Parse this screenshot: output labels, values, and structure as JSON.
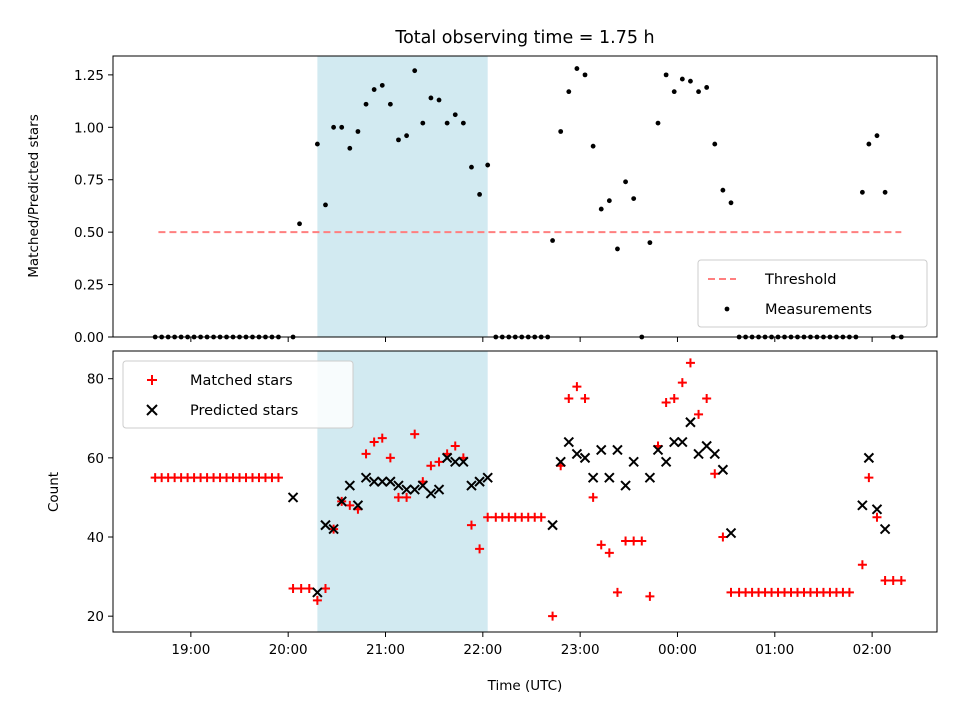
{
  "figure": {
    "title": "Total observing time = 1.75 h",
    "shade_color": "#add8e6",
    "shade_start": "20:18",
    "shade_end": "22:03"
  },
  "chart_data": [
    {
      "type": "scatter",
      "title": "Total observing time = 1.75 h",
      "ylabel": "Matched/Predicted stars",
      "xlabel": "",
      "xlim": [
        "18:12",
        "02:40"
      ],
      "ylim": [
        0,
        1.34
      ],
      "xticks": [
        "19:00",
        "20:00",
        "21:00",
        "22:00",
        "23:00",
        "00:00",
        "01:00",
        "02:00"
      ],
      "yticks": [
        "0.00",
        "0.25",
        "0.50",
        "0.75",
        "1.00",
        "1.25"
      ],
      "legend_position": "lower-right",
      "grid": false,
      "threshold": {
        "name": "Threshold",
        "value": 0.5,
        "x_start": "18:40",
        "x_end": "02:18",
        "color": "#ff7f7f",
        "style": "dashed"
      },
      "series": [
        {
          "name": "Measurements",
          "marker": "dot",
          "color": "#000000",
          "points": [
            [
              "18:38",
              0
            ],
            [
              "18:42",
              0
            ],
            [
              "18:46",
              0
            ],
            [
              "18:50",
              0
            ],
            [
              "18:54",
              0
            ],
            [
              "18:58",
              0
            ],
            [
              "19:02",
              0
            ],
            [
              "19:06",
              0
            ],
            [
              "19:10",
              0
            ],
            [
              "19:14",
              0
            ],
            [
              "19:18",
              0
            ],
            [
              "19:22",
              0
            ],
            [
              "19:26",
              0
            ],
            [
              "19:30",
              0
            ],
            [
              "19:34",
              0
            ],
            [
              "19:38",
              0
            ],
            [
              "19:42",
              0
            ],
            [
              "19:46",
              0
            ],
            [
              "19:50",
              0
            ],
            [
              "19:54",
              0
            ],
            [
              "20:03",
              0
            ],
            [
              "20:07",
              0.54
            ],
            [
              "20:18",
              0.92
            ],
            [
              "20:23",
              0.63
            ],
            [
              "20:28",
              1.0
            ],
            [
              "20:33",
              1.0
            ],
            [
              "20:38",
              0.9
            ],
            [
              "20:43",
              0.98
            ],
            [
              "20:48",
              1.11
            ],
            [
              "20:53",
              1.18
            ],
            [
              "20:58",
              1.2
            ],
            [
              "21:03",
              1.11
            ],
            [
              "21:08",
              0.94
            ],
            [
              "21:13",
              0.96
            ],
            [
              "21:18",
              1.27
            ],
            [
              "21:23",
              1.02
            ],
            [
              "21:28",
              1.14
            ],
            [
              "21:33",
              1.13
            ],
            [
              "21:38",
              1.02
            ],
            [
              "21:43",
              1.06
            ],
            [
              "21:48",
              1.02
            ],
            [
              "21:53",
              0.81
            ],
            [
              "21:58",
              0.68
            ],
            [
              "22:03",
              0.82
            ],
            [
              "22:08",
              0
            ],
            [
              "22:12",
              0
            ],
            [
              "22:16",
              0
            ],
            [
              "22:20",
              0
            ],
            [
              "22:24",
              0
            ],
            [
              "22:28",
              0
            ],
            [
              "22:32",
              0
            ],
            [
              "22:36",
              0
            ],
            [
              "22:40",
              0
            ],
            [
              "22:43",
              0.46
            ],
            [
              "22:48",
              0.98
            ],
            [
              "22:53",
              1.17
            ],
            [
              "22:58",
              1.28
            ],
            [
              "23:03",
              1.25
            ],
            [
              "23:08",
              0.91
            ],
            [
              "23:13",
              0.61
            ],
            [
              "23:18",
              0.65
            ],
            [
              "23:23",
              0.42
            ],
            [
              "23:28",
              0.74
            ],
            [
              "23:33",
              0.66
            ],
            [
              "23:38",
              0
            ],
            [
              "23:43",
              0.45
            ],
            [
              "23:48",
              1.02
            ],
            [
              "23:53",
              1.25
            ],
            [
              "23:58",
              1.17
            ],
            [
              "00:03",
              1.23
            ],
            [
              "00:08",
              1.22
            ],
            [
              "00:13",
              1.17
            ],
            [
              "00:18",
              1.19
            ],
            [
              "00:23",
              0.92
            ],
            [
              "00:28",
              0.7
            ],
            [
              "00:33",
              0.64
            ],
            [
              "00:38",
              0
            ],
            [
              "00:42",
              0
            ],
            [
              "00:46",
              0
            ],
            [
              "00:50",
              0
            ],
            [
              "00:54",
              0
            ],
            [
              "00:58",
              0
            ],
            [
              "01:02",
              0
            ],
            [
              "01:06",
              0
            ],
            [
              "01:10",
              0
            ],
            [
              "01:14",
              0
            ],
            [
              "01:18",
              0
            ],
            [
              "01:22",
              0
            ],
            [
              "01:26",
              0
            ],
            [
              "01:30",
              0
            ],
            [
              "01:34",
              0
            ],
            [
              "01:38",
              0
            ],
            [
              "01:42",
              0
            ],
            [
              "01:46",
              0
            ],
            [
              "01:50",
              0
            ],
            [
              "01:54",
              0.69
            ],
            [
              "01:58",
              0.92
            ],
            [
              "02:03",
              0.96
            ],
            [
              "02:08",
              0.69
            ],
            [
              "02:13",
              0
            ],
            [
              "02:18",
              0
            ]
          ]
        }
      ]
    },
    {
      "type": "scatter",
      "title": "",
      "ylabel": "Count",
      "xlabel": "Time (UTC)",
      "xlim": [
        "18:12",
        "02:40"
      ],
      "ylim": [
        16,
        87
      ],
      "xticks": [
        "19:00",
        "20:00",
        "21:00",
        "22:00",
        "23:00",
        "00:00",
        "01:00",
        "02:00"
      ],
      "yticks": [
        "20",
        "40",
        "60",
        "80"
      ],
      "legend_position": "top-left",
      "grid": false,
      "series": [
        {
          "name": "Matched stars",
          "marker": "plus",
          "color": "#ff0000",
          "points": [
            [
              "18:38",
              55
            ],
            [
              "18:42",
              55
            ],
            [
              "18:46",
              55
            ],
            [
              "18:50",
              55
            ],
            [
              "18:54",
              55
            ],
            [
              "18:58",
              55
            ],
            [
              "19:02",
              55
            ],
            [
              "19:06",
              55
            ],
            [
              "19:10",
              55
            ],
            [
              "19:14",
              55
            ],
            [
              "19:18",
              55
            ],
            [
              "19:22",
              55
            ],
            [
              "19:26",
              55
            ],
            [
              "19:30",
              55
            ],
            [
              "19:34",
              55
            ],
            [
              "19:38",
              55
            ],
            [
              "19:42",
              55
            ],
            [
              "19:46",
              55
            ],
            [
              "19:50",
              55
            ],
            [
              "19:54",
              55
            ],
            [
              "20:03",
              27
            ],
            [
              "20:08",
              27
            ],
            [
              "20:13",
              27
            ],
            [
              "20:18",
              24
            ],
            [
              "20:23",
              27
            ],
            [
              "20:28",
              42
            ],
            [
              "20:33",
              49
            ],
            [
              "20:38",
              48
            ],
            [
              "20:43",
              47
            ],
            [
              "20:48",
              61
            ],
            [
              "20:53",
              64
            ],
            [
              "20:58",
              65
            ],
            [
              "21:03",
              60
            ],
            [
              "21:08",
              50
            ],
            [
              "21:13",
              50
            ],
            [
              "21:18",
              66
            ],
            [
              "21:23",
              54
            ],
            [
              "21:28",
              58
            ],
            [
              "21:33",
              59
            ],
            [
              "21:38",
              61
            ],
            [
              "21:43",
              63
            ],
            [
              "21:48",
              60
            ],
            [
              "21:53",
              43
            ],
            [
              "21:58",
              37
            ],
            [
              "22:03",
              45
            ],
            [
              "22:08",
              45
            ],
            [
              "22:12",
              45
            ],
            [
              "22:16",
              45
            ],
            [
              "22:20",
              45
            ],
            [
              "22:24",
              45
            ],
            [
              "22:28",
              45
            ],
            [
              "22:32",
              45
            ],
            [
              "22:36",
              45
            ],
            [
              "22:43",
              20
            ],
            [
              "22:48",
              58
            ],
            [
              "22:53",
              75
            ],
            [
              "22:58",
              78
            ],
            [
              "23:03",
              75
            ],
            [
              "23:08",
              50
            ],
            [
              "23:13",
              38
            ],
            [
              "23:18",
              36
            ],
            [
              "23:23",
              26
            ],
            [
              "23:28",
              39
            ],
            [
              "23:33",
              39
            ],
            [
              "23:38",
              39
            ],
            [
              "23:43",
              25
            ],
            [
              "23:48",
              63
            ],
            [
              "23:53",
              74
            ],
            [
              "23:58",
              75
            ],
            [
              "00:03",
              79
            ],
            [
              "00:08",
              84
            ],
            [
              "00:13",
              71
            ],
            [
              "00:18",
              75
            ],
            [
              "00:23",
              56
            ],
            [
              "00:28",
              40
            ],
            [
              "00:33",
              26
            ],
            [
              "00:38",
              26
            ],
            [
              "00:42",
              26
            ],
            [
              "00:46",
              26
            ],
            [
              "00:50",
              26
            ],
            [
              "00:54",
              26
            ],
            [
              "00:58",
              26
            ],
            [
              "01:02",
              26
            ],
            [
              "01:06",
              26
            ],
            [
              "01:10",
              26
            ],
            [
              "01:14",
              26
            ],
            [
              "01:18",
              26
            ],
            [
              "01:22",
              26
            ],
            [
              "01:26",
              26
            ],
            [
              "01:30",
              26
            ],
            [
              "01:34",
              26
            ],
            [
              "01:38",
              26
            ],
            [
              "01:42",
              26
            ],
            [
              "01:46",
              26
            ],
            [
              "01:54",
              33
            ],
            [
              "01:58",
              55
            ],
            [
              "02:03",
              45
            ],
            [
              "02:08",
              29
            ],
            [
              "02:13",
              29
            ],
            [
              "02:18",
              29
            ]
          ]
        },
        {
          "name": "Predicted stars",
          "marker": "x",
          "color": "#000000",
          "points": [
            [
              "20:03",
              50
            ],
            [
              "20:18",
              26
            ],
            [
              "20:23",
              43
            ],
            [
              "20:28",
              42
            ],
            [
              "20:33",
              49
            ],
            [
              "20:38",
              53
            ],
            [
              "20:43",
              48
            ],
            [
              "20:48",
              55
            ],
            [
              "20:53",
              54
            ],
            [
              "20:58",
              54
            ],
            [
              "21:03",
              54
            ],
            [
              "21:08",
              53
            ],
            [
              "21:13",
              52
            ],
            [
              "21:18",
              52
            ],
            [
              "21:23",
              53
            ],
            [
              "21:28",
              51
            ],
            [
              "21:33",
              52
            ],
            [
              "21:38",
              60
            ],
            [
              "21:43",
              59
            ],
            [
              "21:48",
              59
            ],
            [
              "21:53",
              53
            ],
            [
              "21:58",
              54
            ],
            [
              "22:03",
              55
            ],
            [
              "22:43",
              43
            ],
            [
              "22:48",
              59
            ],
            [
              "22:53",
              64
            ],
            [
              "22:58",
              61
            ],
            [
              "23:03",
              60
            ],
            [
              "23:08",
              55
            ],
            [
              "23:13",
              62
            ],
            [
              "23:18",
              55
            ],
            [
              "23:23",
              62
            ],
            [
              "23:28",
              53
            ],
            [
              "23:33",
              59
            ],
            [
              "23:43",
              55
            ],
            [
              "23:48",
              62
            ],
            [
              "23:53",
              59
            ],
            [
              "23:58",
              64
            ],
            [
              "00:03",
              64
            ],
            [
              "00:08",
              69
            ],
            [
              "00:13",
              61
            ],
            [
              "00:18",
              63
            ],
            [
              "00:23",
              61
            ],
            [
              "00:28",
              57
            ],
            [
              "00:33",
              41
            ],
            [
              "01:54",
              48
            ],
            [
              "01:58",
              60
            ],
            [
              "02:03",
              47
            ],
            [
              "02:08",
              42
            ]
          ]
        }
      ]
    }
  ]
}
